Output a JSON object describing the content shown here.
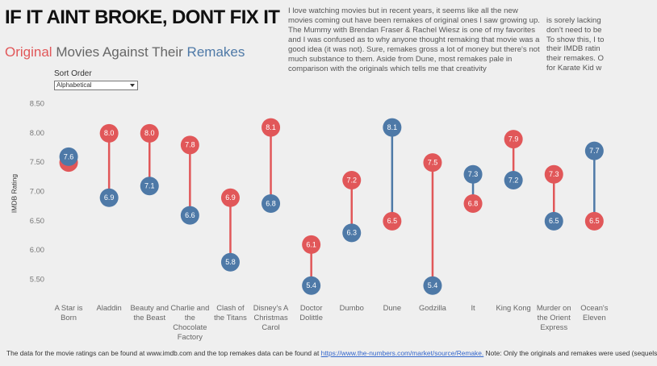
{
  "header": {
    "title": "IF IT AINT BROKE, DONT FIX IT"
  },
  "description": "I love watching movies but in recent years, it seems like all the new movies coming out have been remakes of original ones I saw growing up. The Mummy with Brendan Fraser & Rachel Wiesz is one of my favorites and I was confused as to why anyone thought remaking that movie was a good idea (it was not). Sure, remakes gross a lot of money but there's not much substance to them. Aside from Dune, most remakes pale in comparison with the originals which tells me that creativity",
  "side_note": [
    "is sorely lacking",
    "don't need to be",
    "To show this, I to",
    "their IMDB ratin",
    "their remakes. O",
    "for Karate Kid w"
  ],
  "sort_control": {
    "label": "Sort Order",
    "value": "Alphabetical"
  },
  "footer": {
    "text": "The data for the movie ratings can be found at www.imdb.com and the top remakes data can be found at ",
    "link": "https://www.the-numbers.com/market/source/Remake.",
    "note": " Note: Only the originals and remakes were used (sequels"
  },
  "chart_data": {
    "type": "dumbbell",
    "subtitle": "Movies Against Their",
    "y_label": "IMDB Rating",
    "categories": [
      "A Star is Born",
      "Aladdin",
      "Beauty and the Beast",
      "Charlie and the Chocolate Factory",
      "Clash of the Titans",
      "Disney's A Christmas Carol",
      "Doctor Dolittle",
      "Dumbo",
      "Dune",
      "Godzilla",
      "It",
      "King Kong",
      "Murder on the Orient Express",
      "Ocean's Eleven"
    ],
    "series": [
      {
        "name": "Original",
        "color": "#e15759",
        "values": [
          7.5,
          8.0,
          8.0,
          7.8,
          6.9,
          8.1,
          6.1,
          7.2,
          6.5,
          7.5,
          6.8,
          7.9,
          7.3,
          6.5
        ],
        "value_labels": [
          "7.5",
          "8.0",
          "8.0",
          "7.8",
          "6.9",
          "8.1",
          "6.1",
          "7.2",
          "6.5",
          "7.5",
          "6.8",
          "7.9",
          "7.3",
          "6.5"
        ]
      },
      {
        "name": "Remakes",
        "color": "#4e79a7",
        "values": [
          7.6,
          6.9,
          7.1,
          6.6,
          5.8,
          6.8,
          5.4,
          6.3,
          8.1,
          5.4,
          7.3,
          7.2,
          6.5,
          7.7
        ],
        "value_labels": [
          "7.6",
          "6.9",
          "7.1",
          "6.6",
          "5.8",
          "6.8",
          "5.4",
          "6.3",
          "8.1",
          "5.4",
          "7.3",
          "7.2",
          "6.5",
          "7.7"
        ]
      }
    ],
    "ylim": [
      5.25,
      8.6
    ],
    "yticks": [
      {
        "value": 5.5,
        "label": "5.50"
      },
      {
        "value": 6,
        "label": "6.00"
      },
      {
        "value": 6.5,
        "label": "6.50"
      },
      {
        "value": 7,
        "label": "7.00"
      },
      {
        "value": 7.5,
        "label": "7.50"
      },
      {
        "value": 8,
        "label": "8.00"
      },
      {
        "value": 8.5,
        "label": "8.50"
      }
    ],
    "grid": false
  }
}
